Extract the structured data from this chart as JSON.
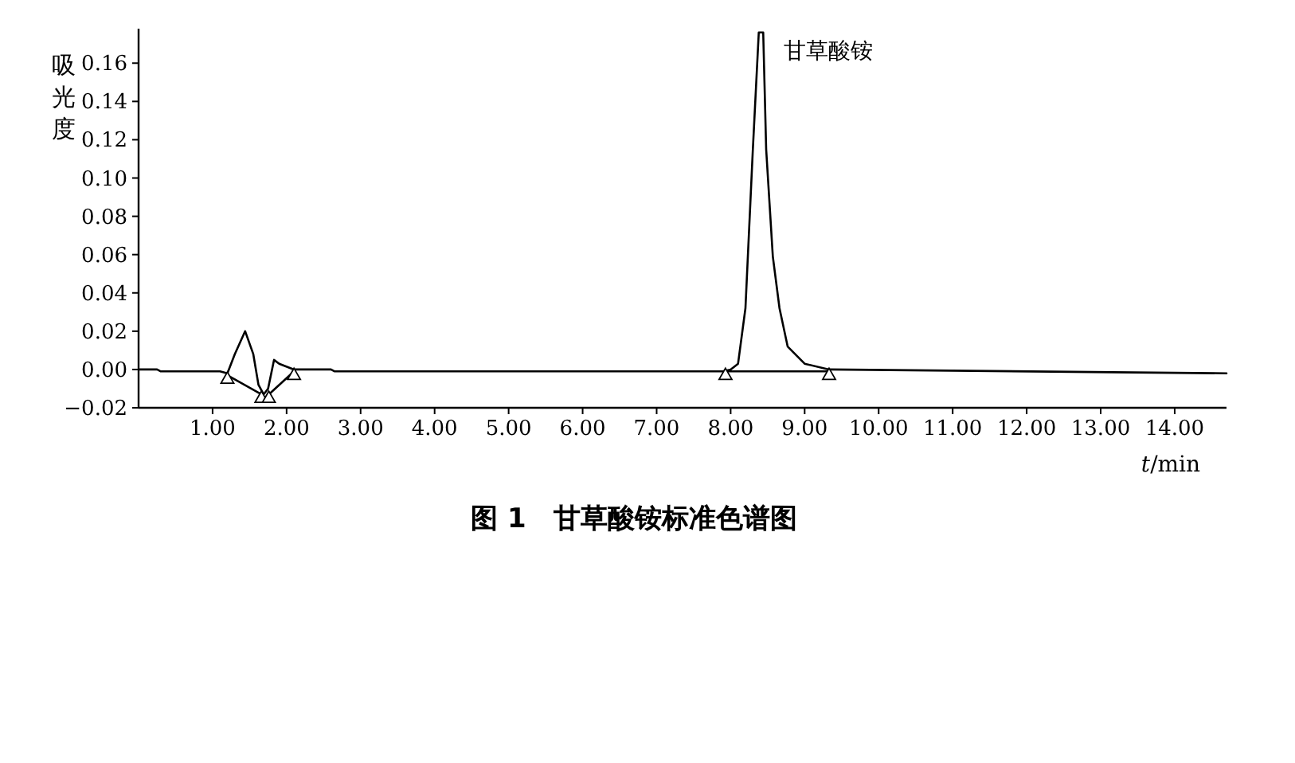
{
  "chart_data": {
    "type": "line",
    "title": "图 1　甘草酸铵标准色谱图",
    "xlabel": "*t*/min",
    "ylabel": "吸光度",
    "xlim": [
      0,
      14.7
    ],
    "ylim": [
      -0.02,
      0.178
    ],
    "xticks": [
      {
        "value": 1,
        "label": "1.00"
      },
      {
        "value": 2,
        "label": "2.00"
      },
      {
        "value": 3,
        "label": "3.00"
      },
      {
        "value": 4,
        "label": "4.00"
      },
      {
        "value": 5,
        "label": "5.00"
      },
      {
        "value": 6,
        "label": "6.00"
      },
      {
        "value": 7,
        "label": "7.00"
      },
      {
        "value": 8,
        "label": "8.00"
      },
      {
        "value": 9,
        "label": "9.00"
      },
      {
        "value": 10,
        "label": "10.00"
      },
      {
        "value": 11,
        "label": "11.00"
      },
      {
        "value": 12,
        "label": "12.00"
      },
      {
        "value": 13,
        "label": "13.00"
      },
      {
        "value": 14,
        "label": "14.00"
      }
    ],
    "yticks": [
      {
        "value": -0.02,
        "label": "−0.02"
      },
      {
        "value": 0,
        "label": "0.00"
      },
      {
        "value": 0.02,
        "label": "0.02"
      },
      {
        "value": 0.04,
        "label": "0.04"
      },
      {
        "value": 0.06,
        "label": "0.06"
      },
      {
        "value": 0.08,
        "label": "0.08"
      },
      {
        "value": 0.1,
        "label": "0.10"
      },
      {
        "value": 0.12,
        "label": "0.12"
      },
      {
        "value": 0.14,
        "label": "0.14"
      },
      {
        "value": 0.16,
        "label": "0.16"
      }
    ],
    "annotations": [
      {
        "text": "甘草酸铵",
        "x": 8.41,
        "y": 0.176
      }
    ],
    "series": [
      {
        "type": "line",
        "color": "#000000",
        "x": [
          0,
          0.25,
          0.3,
          1.1,
          1.2,
          1.3,
          1.44,
          1.55,
          1.62,
          1.69,
          1.75,
          1.83,
          1.9,
          2.1,
          2.6,
          2.65,
          7.9,
          8.0,
          8.1,
          8.2,
          8.3,
          8.38,
          8.44,
          8.48,
          8.57,
          8.66,
          8.77,
          9.0,
          9.33,
          14.7
        ],
        "values": [
          0,
          0,
          -0.001,
          -0.001,
          -0.002,
          0.008,
          0.02,
          0.008,
          -0.008,
          -0.013,
          -0.01,
          0.005,
          0.003,
          0,
          0,
          -0.001,
          -0.001,
          0,
          0.003,
          0.032,
          0.115,
          0.176,
          0.176,
          0.115,
          0.059,
          0.032,
          0.012,
          0.003,
          0,
          -0.002
        ]
      },
      {
        "type": "line",
        "color": "#000000",
        "x": [
          1.2,
          1.66,
          1.7,
          1.76,
          2.1,
          5,
          7.93,
          9.33
        ],
        "values": [
          -0.003,
          -0.013,
          null,
          -0.013,
          -0.001,
          null,
          -0.001,
          -0.001
        ]
      },
      {
        "type": "scatter",
        "marker": "triangle",
        "color": "#000000",
        "x": [
          1.2,
          1.66,
          1.76,
          2.1,
          7.93,
          9.33
        ],
        "values": [
          -0.003,
          -0.013,
          -0.013,
          -0.001,
          -0.001,
          -0.001
        ]
      }
    ]
  }
}
